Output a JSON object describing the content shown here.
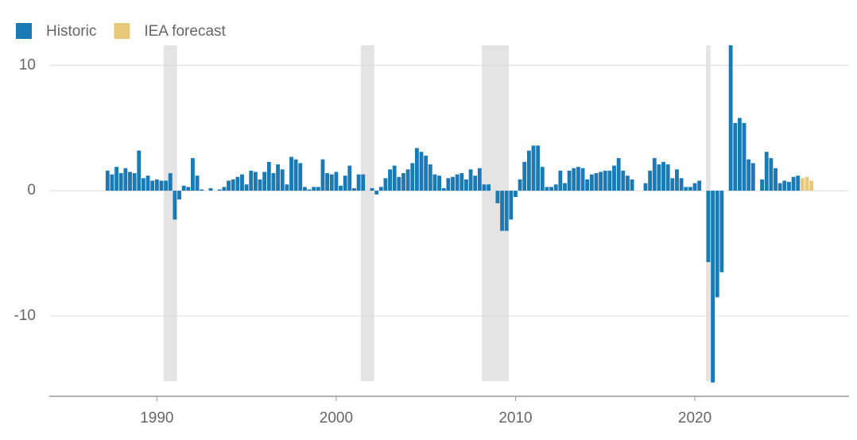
{
  "chart_data": {
    "type": "bar",
    "series": [
      {
        "name": "Historic",
        "color": "#1a7ab5",
        "x": [
          1987.25,
          1987.5,
          1987.75,
          1988,
          1988.25,
          1988.5,
          1988.75,
          1989,
          1989.25,
          1989.5,
          1989.75,
          1990,
          1990.25,
          1990.5,
          1990.75,
          1991,
          1991.25,
          1991.5,
          1991.75,
          1992,
          1992.25,
          1992.5,
          1992.75,
          1993,
          1993.25,
          1993.5,
          1993.75,
          1994,
          1994.25,
          1994.5,
          1994.75,
          1995,
          1995.25,
          1995.5,
          1995.75,
          1996,
          1996.25,
          1996.5,
          1996.75,
          1997,
          1997.25,
          1997.5,
          1997.75,
          1998,
          1998.25,
          1998.5,
          1998.75,
          1999,
          1999.25,
          1999.5,
          1999.75,
          2000,
          2000.25,
          2000.5,
          2000.75,
          2001,
          2001.25,
          2001.5,
          2001.75,
          2002,
          2002.25,
          2002.5,
          2002.75,
          2003,
          2003.25,
          2003.5,
          2003.75,
          2004,
          2004.25,
          2004.5,
          2004.75,
          2005,
          2005.25,
          2005.5,
          2005.75,
          2006,
          2006.25,
          2006.5,
          2006.75,
          2007,
          2007.25,
          2007.5,
          2007.75,
          2008,
          2008.25,
          2008.5,
          2008.75,
          2009,
          2009.25,
          2009.5,
          2009.75,
          2010,
          2010.25,
          2010.5,
          2010.75,
          2011,
          2011.25,
          2011.5,
          2011.75,
          2012,
          2012.25,
          2012.5,
          2012.75,
          2013,
          2013.25,
          2013.5,
          2013.75,
          2014,
          2014.25,
          2014.5,
          2014.75,
          2015,
          2015.25,
          2015.5,
          2015.75,
          2016,
          2016.25,
          2016.5,
          2016.75,
          2017,
          2017.25,
          2017.5,
          2017.75,
          2018,
          2018.25,
          2018.5,
          2018.75,
          2019,
          2019.25,
          2019.5,
          2019.75,
          2020,
          2020.25,
          2020.5,
          2020.75,
          2021,
          2021.25,
          2021.5,
          2021.75,
          2022,
          2022.25,
          2022.5,
          2022.75,
          2023,
          2023.25,
          2023.5,
          2023.75,
          2024,
          2024.25,
          2024.5,
          2024.75,
          2025,
          2025.25,
          2025.5,
          2025.75
        ],
        "values": [
          1.6,
          1.3,
          1.9,
          1.4,
          1.8,
          1.5,
          1.4,
          3.2,
          1.0,
          1.2,
          0.8,
          0.9,
          0.8,
          0.8,
          1.4,
          -2.3,
          -0.7,
          0.4,
          0.3,
          2.6,
          1.2,
          0.1,
          0.0,
          0.2,
          0.0,
          0.1,
          0.3,
          0.8,
          0.9,
          1.1,
          1.3,
          0.5,
          1.6,
          1.5,
          0.9,
          1.5,
          2.3,
          1.4,
          2.1,
          1.7,
          0.5,
          2.7,
          2.5,
          2.2,
          0.3,
          0.1,
          0.3,
          0.3,
          2.5,
          1.4,
          1.3,
          1.5,
          0.4,
          1.2,
          2.0,
          0.2,
          1.3,
          1.3,
          0.0,
          0.2,
          -0.3,
          0.3,
          1.0,
          1.7,
          2.0,
          1.1,
          1.4,
          1.7,
          2.2,
          3.4,
          3.1,
          2.8,
          2.1,
          1.3,
          1.2,
          0.2,
          1.0,
          1.1,
          1.3,
          1.4,
          0.9,
          1.7,
          1.2,
          1.8,
          0.5,
          0.5,
          0.0,
          -1.0,
          -3.2,
          -3.2,
          -2.3,
          -0.5,
          0.9,
          2.3,
          3.2,
          3.6,
          3.6,
          1.9,
          0.3,
          0.3,
          0.5,
          1.6,
          0.6,
          1.6,
          1.8,
          1.9,
          1.8,
          0.9,
          1.3,
          1.4,
          1.5,
          1.6,
          1.6,
          2.0,
          2.6,
          1.6,
          1.2,
          0.9,
          0.0,
          0.0,
          0.6,
          1.6,
          2.6,
          2.1,
          2.3,
          2.1,
          1.0,
          1.7,
          1.0,
          0.3,
          0.3,
          0.6,
          0.8,
          0.0,
          -5.7,
          -15.3,
          -8.5,
          -6.5,
          0.0,
          11.6,
          5.4,
          5.8,
          5.4,
          2.5,
          2.2,
          0.0,
          0.9,
          3.1,
          2.6,
          1.8,
          0.6,
          0.8,
          0.7,
          1.1,
          1.2
        ]
      },
      {
        "name": "IEA forecast",
        "color": "#e8c97a",
        "x": [
          2026,
          2026.25,
          2026.5
        ],
        "values": [
          1.0,
          1.1,
          0.8
        ]
      }
    ],
    "recessions": [
      [
        1990.5,
        1991.25
      ],
      [
        2001.5,
        2002.25
      ],
      [
        2008.25,
        2009.75
      ],
      [
        2020.75,
        2021.0
      ]
    ],
    "xlim": [
      1984,
      2028.6
    ],
    "xticks": [
      1990,
      2000,
      2010,
      2020
    ],
    "ylim": [
      -16.4,
      11.6
    ],
    "yticks": [
      -10,
      0,
      10
    ],
    "grid": true
  }
}
